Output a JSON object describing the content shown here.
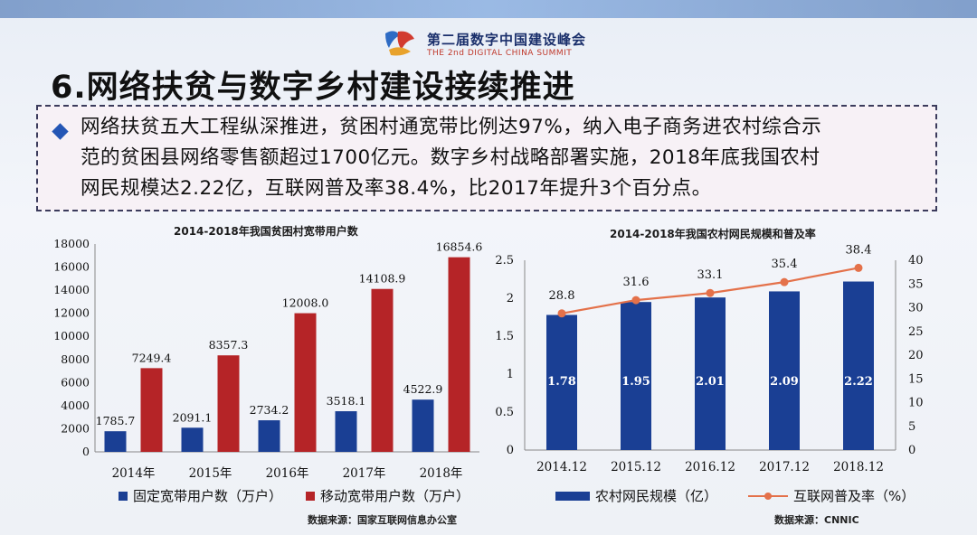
{
  "header": {
    "summit_cn": "第二届数字中国建设峰会",
    "summit_en": "THE 2nd DIGITAL CHINA SUMMIT"
  },
  "slide_title": "6.网络扶贫与数字乡村建设接续推进",
  "callout": {
    "line1": "网络扶贫五大工程纵深推进，贫困村通宽带比例达97%，纳入电子商务进农村综合示",
    "line2": "范的贫困县网络零售额超过1700亿元。数字乡村战略部署实施，2018年底我国农村",
    "line3": "网民规模达2.22亿，互联网普及率38.4%，比2017年提升3个百分点。"
  },
  "colors": {
    "fixed": "#1a3f94",
    "mobile": "#b52427",
    "rural": "#1a3f94",
    "rate": "#e4714a"
  },
  "chart_data": [
    {
      "type": "bar",
      "title": "2014-2018年我国贫困村宽带用户数",
      "categories": [
        "2014年",
        "2015年",
        "2016年",
        "2017年",
        "2018年"
      ],
      "ylim": [
        0,
        18000
      ],
      "yticks": [
        0,
        2000,
        4000,
        6000,
        8000,
        10000,
        12000,
        14000,
        16000,
        18000
      ],
      "series": [
        {
          "name": "固定宽带用户数（万户）",
          "values": [
            1785.7,
            2091.1,
            2734.2,
            3518.1,
            4522.9
          ],
          "labels": [
            "1785.7",
            "2091.1",
            "2734.2",
            "3518.1",
            "4522.9"
          ]
        },
        {
          "name": "移动宽带用户数（万户）",
          "values": [
            7249.4,
            8357.3,
            12008.0,
            14108.9,
            16854.6
          ],
          "labels": [
            "7249.4",
            "8357.3",
            "12008.0",
            "14108.9",
            "16854.6"
          ]
        }
      ],
      "legend": "bottom",
      "source": "数据来源：国家互联网信息办公室"
    },
    {
      "type": "bar+line",
      "title": "2014-2018年我国农村网民规模和普及率",
      "categories": [
        "2014.12",
        "2015.12",
        "2016.12",
        "2017.12",
        "2018.12"
      ],
      "ylim_left": [
        0,
        2.5
      ],
      "yticks_left": [
        "0",
        "0.5",
        "1",
        "1.5",
        "2",
        "2.5"
      ],
      "ylim_right": [
        0,
        40
      ],
      "yticks_right": [
        "0",
        "5",
        "10",
        "15",
        "20",
        "25",
        "30",
        "35",
        "40"
      ],
      "series": [
        {
          "name": "农村网民规模（亿）",
          "axis": "left",
          "values": [
            1.78,
            1.95,
            2.01,
            2.09,
            2.22
          ],
          "labels": [
            "1.78",
            "1.95",
            "2.01",
            "2.09",
            "2.22"
          ]
        },
        {
          "name": "互联网普及率（%）",
          "axis": "right",
          "values": [
            28.8,
            31.6,
            33.1,
            35.4,
            38.4
          ],
          "labels": [
            "28.8",
            "31.6",
            "33.1",
            "35.4",
            "38.4"
          ]
        }
      ],
      "legend": "bottom",
      "source": "数据来源：CNNIC"
    }
  ]
}
